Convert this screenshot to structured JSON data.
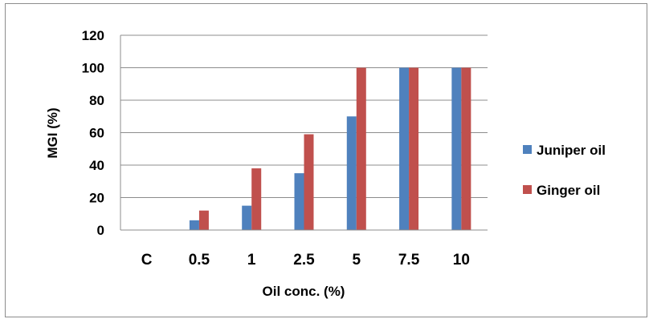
{
  "chart_data": {
    "type": "bar",
    "categories": [
      "C",
      "0.5",
      "1",
      "2.5",
      "5",
      "7.5",
      "10"
    ],
    "series": [
      {
        "name": "Juniper oil",
        "color": "#4f81bd",
        "values": [
          0,
          6,
          15,
          35,
          70,
          100,
          100
        ]
      },
      {
        "name": "Ginger oil",
        "color": "#c0504d",
        "values": [
          0,
          12,
          38,
          59,
          100,
          100,
          100
        ]
      }
    ],
    "xlabel": "Oil conc. (%)",
    "ylabel": "MGI (%)",
    "ylim": [
      0,
      120
    ],
    "yticks": [
      0,
      20,
      40,
      60,
      80,
      100,
      120
    ],
    "grid": true,
    "legend_position": "right"
  }
}
